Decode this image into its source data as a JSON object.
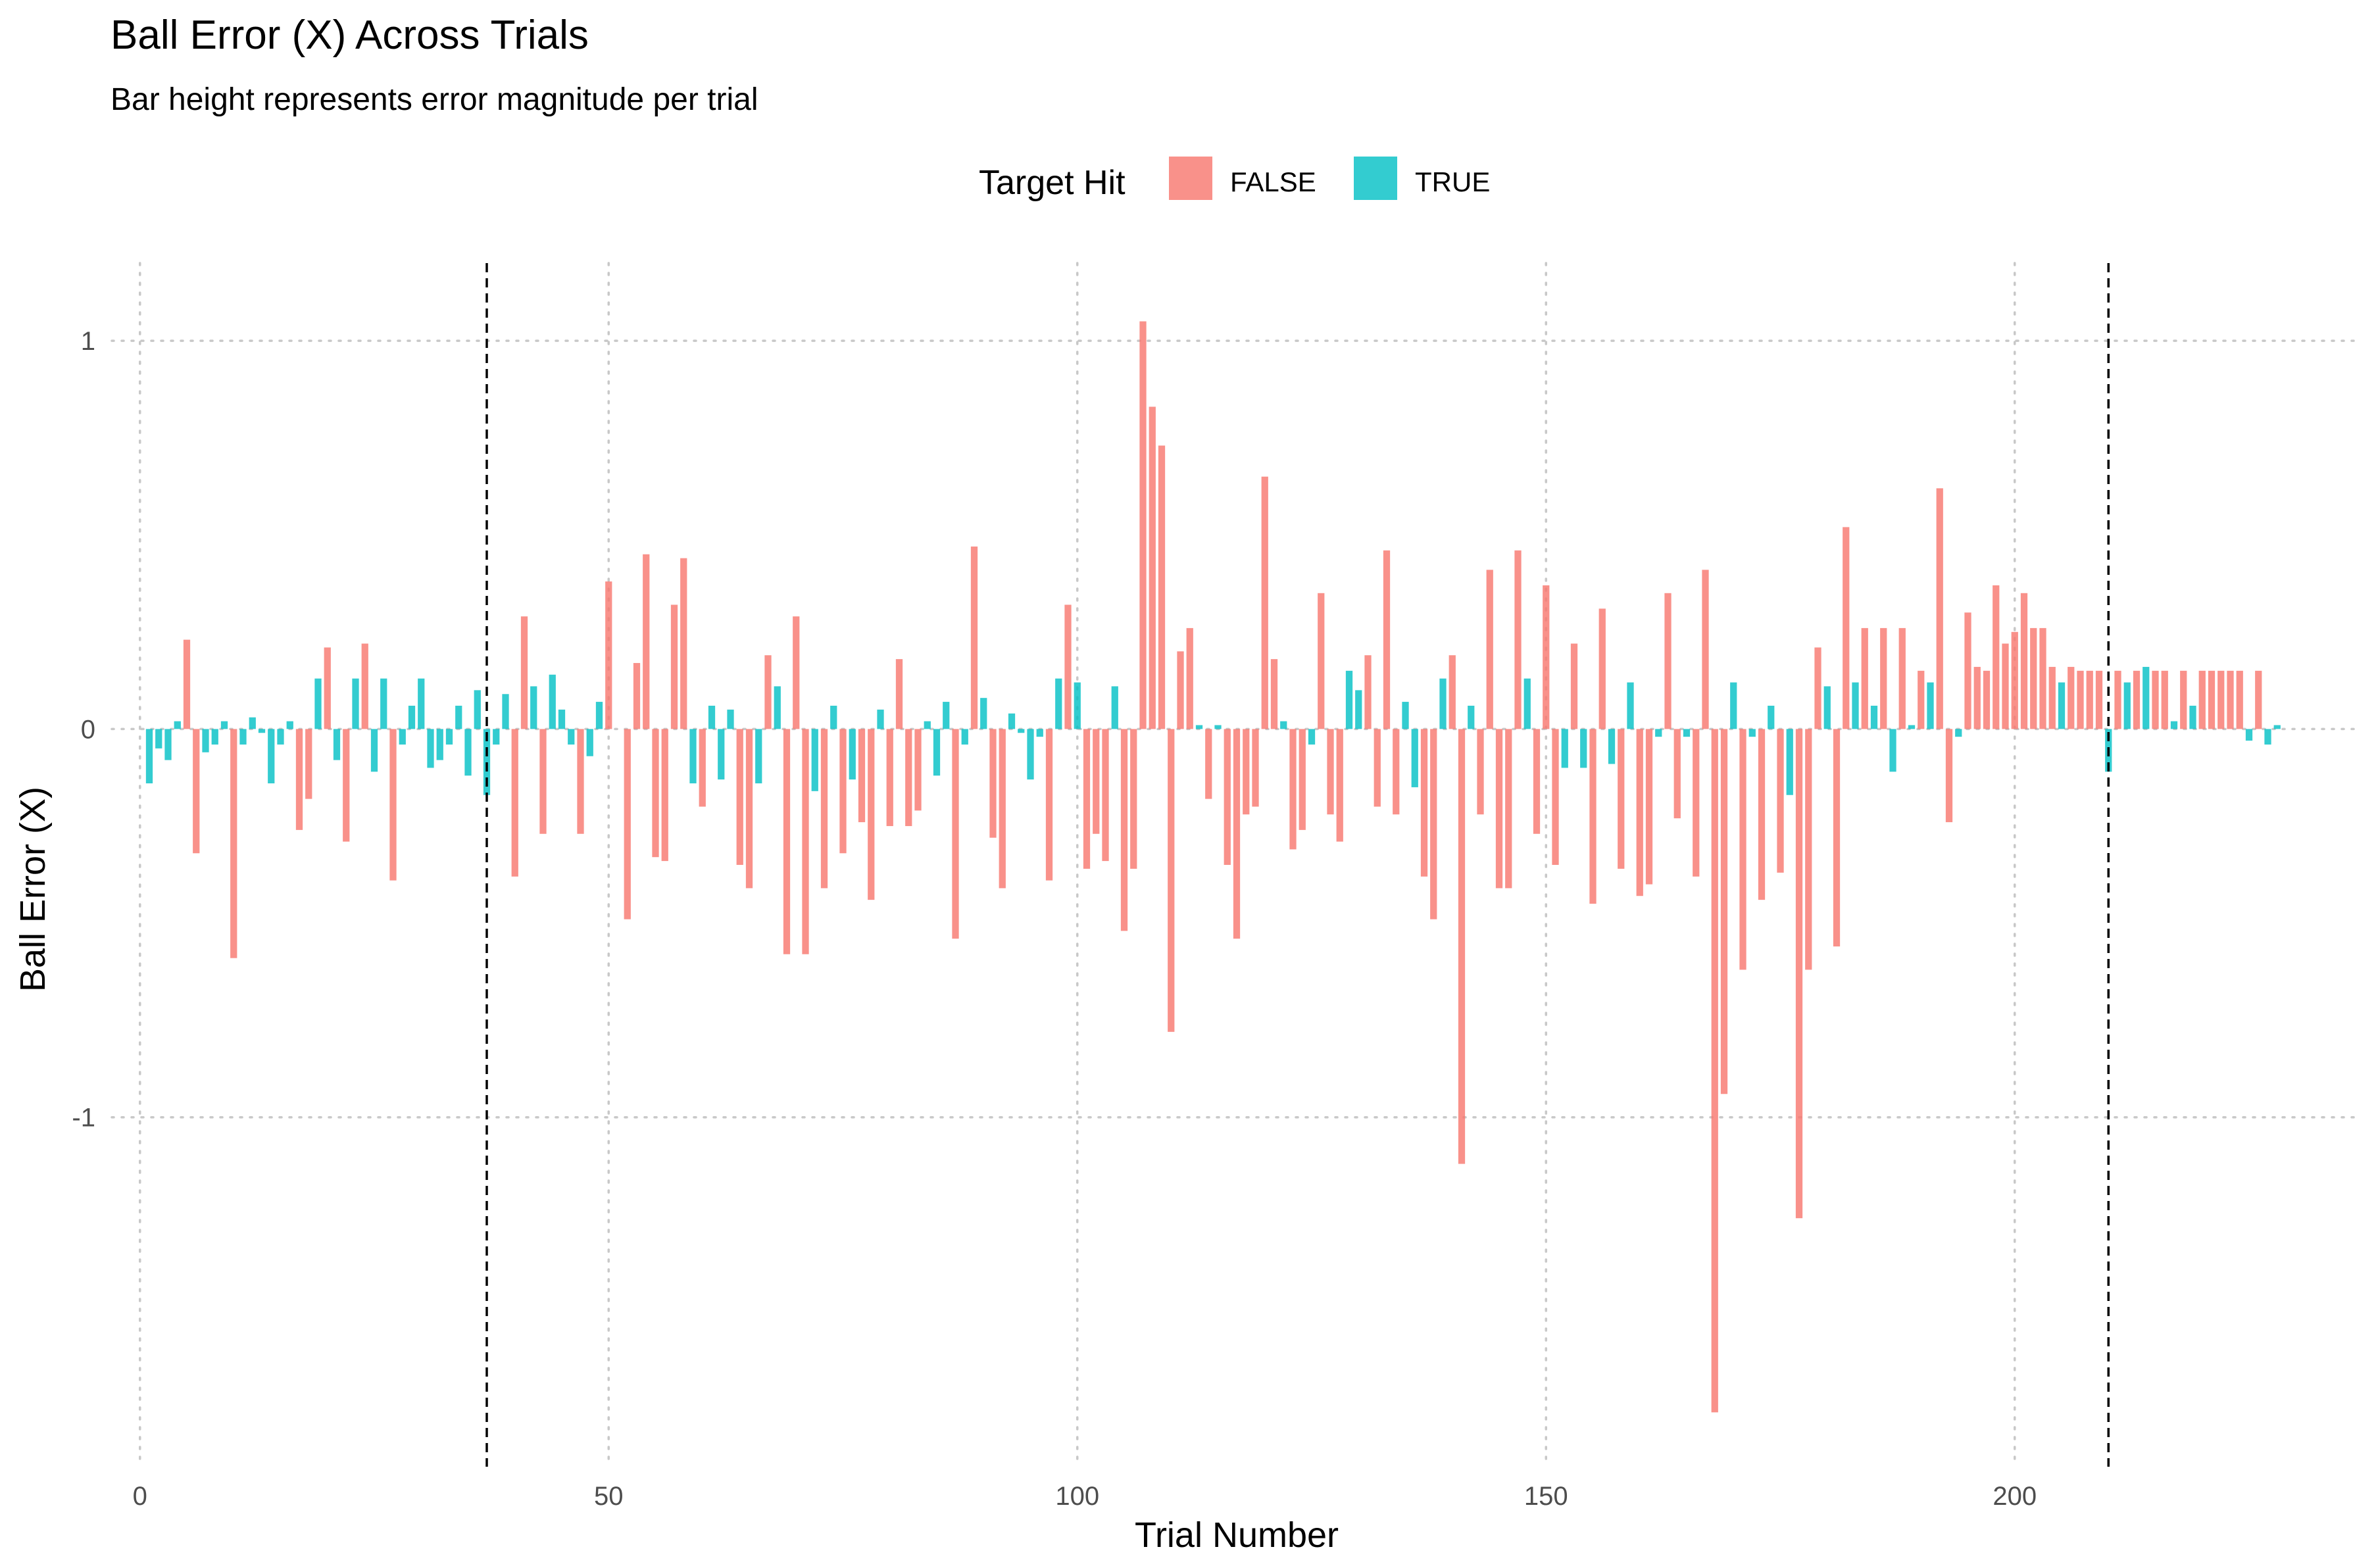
{
  "chart_data": {
    "type": "bar",
    "title": "Ball Error (X) Across Trials",
    "subtitle": "Bar height represents error magnitude per trial",
    "xlabel": "Trial Number",
    "ylabel": "Ball Error (X)",
    "xlim": [
      -3,
      237
    ],
    "ylim": [
      -1.9,
      1.2
    ],
    "x_ticks": [
      0,
      50,
      100,
      150,
      200
    ],
    "y_ticks": [
      -1,
      0,
      1
    ],
    "x_tick_labels": [
      "0",
      "50",
      "100",
      "150",
      "200"
    ],
    "y_tick_labels": [
      "-1",
      "0",
      "1"
    ],
    "grid": "dotted, major x and y",
    "legend": {
      "title": "Target Hit",
      "placement": "top-center",
      "entries": [
        {
          "label": "FALSE",
          "color": "#F8766D"
        },
        {
          "label": "TRUE",
          "color": "#00BFC4"
        }
      ]
    },
    "reference_lines_x": [
      37,
      210
    ],
    "series": [
      {
        "name": "FALSE",
        "color": "#F8766D",
        "x": [
          5,
          6,
          10,
          17,
          18,
          20,
          22,
          24,
          27,
          40,
          41,
          43,
          47,
          50,
          52,
          53,
          54,
          55,
          56,
          57,
          58,
          60,
          64,
          65,
          67,
          69,
          70,
          71,
          73,
          75,
          77,
          78,
          80,
          81,
          82,
          83,
          87,
          89,
          91,
          92,
          97,
          99,
          101,
          102,
          103,
          105,
          106,
          107,
          108,
          109,
          110,
          111,
          112,
          114,
          116,
          117,
          118,
          119,
          120,
          121,
          123,
          124,
          126,
          127,
          128,
          131,
          132,
          133,
          134,
          137,
          138,
          140,
          141,
          143,
          144,
          145,
          146,
          147,
          149,
          150,
          151,
          153,
          155,
          156,
          158,
          160,
          161,
          163,
          164,
          166,
          167,
          168,
          169,
          171,
          173,
          175,
          177,
          178,
          179,
          181,
          182,
          184,
          186,
          188,
          190,
          192,
          193,
          195,
          196,
          197,
          198,
          199,
          200,
          201,
          202,
          203,
          204,
          206,
          207,
          208,
          209,
          211,
          213,
          215,
          216,
          218,
          220,
          221,
          222,
          223,
          224,
          226
        ],
        "values": [
          0.23,
          -0.32,
          -0.59,
          -0.26,
          -0.18,
          0.21,
          -0.29,
          0.22,
          -0.39,
          -0.38,
          0.29,
          -0.27,
          -0.27,
          0.38,
          -0.49,
          0.17,
          0.45,
          -0.33,
          -0.34,
          0.32,
          0.44,
          -0.2,
          -0.35,
          -0.41,
          0.19,
          -0.58,
          0.29,
          -0.58,
          -0.41,
          -0.32,
          -0.24,
          -0.44,
          -0.25,
          0.18,
          -0.25,
          -0.21,
          -0.54,
          0.47,
          -0.28,
          -0.41,
          -0.39,
          0.32,
          -0.36,
          -0.27,
          -0.34,
          -0.52,
          -0.36,
          1.05,
          0.83,
          0.73,
          -0.78,
          0.2,
          0.26,
          -0.18,
          -0.35,
          -0.54,
          -0.22,
          -0.2,
          0.65,
          0.18,
          -0.31,
          -0.26,
          0.35,
          -0.22,
          -0.29,
          0.19,
          -0.2,
          0.46,
          -0.22,
          -0.38,
          -0.49,
          0.19,
          -1.12,
          -0.22,
          0.41,
          -0.41,
          -0.41,
          0.46,
          -0.27,
          0.37,
          -0.35,
          0.22,
          -0.45,
          0.31,
          -0.36,
          -0.43,
          -0.4,
          0.35,
          -0.23,
          -0.38,
          0.41,
          -1.76,
          -0.94,
          -0.62,
          -0.44,
          -0.37,
          -1.26,
          -0.62,
          0.21,
          -0.56,
          0.52,
          0.26,
          0.26,
          0.26,
          0.15,
          0.62,
          -0.24,
          0.3,
          0.16,
          0.15,
          0.37,
          0.22,
          0.25,
          0.35,
          0.26,
          0.26,
          0.16,
          0.16,
          0.15,
          0.15,
          0.15,
          0.15,
          0.15,
          0.15,
          0.15,
          0.15,
          0.15,
          0.15,
          0.15,
          0.15,
          0.15,
          0.15
        ]
      },
      {
        "name": "TRUE",
        "color": "#00BFC4",
        "x": [
          1,
          2,
          3,
          4,
          7,
          8,
          9,
          11,
          12,
          13,
          14,
          15,
          16,
          19,
          21,
          23,
          25,
          26,
          28,
          29,
          30,
          31,
          32,
          33,
          34,
          35,
          36,
          37,
          38,
          39,
          42,
          44,
          45,
          46,
          48,
          49,
          59,
          61,
          62,
          63,
          66,
          68,
          72,
          74,
          76,
          79,
          84,
          85,
          86,
          88,
          90,
          93,
          94,
          95,
          96,
          98,
          100,
          104,
          113,
          115,
          122,
          125,
          129,
          130,
          135,
          136,
          139,
          142,
          148,
          152,
          154,
          157,
          159,
          162,
          165,
          170,
          172,
          174,
          176,
          180,
          183,
          185,
          187,
          189,
          191,
          194,
          205,
          210,
          212,
          214,
          217,
          219,
          225,
          227,
          228
        ],
        "values": [
          -0.14,
          -0.05,
          -0.08,
          0.02,
          -0.06,
          -0.04,
          0.02,
          -0.04,
          0.03,
          -0.01,
          -0.14,
          -0.04,
          0.02,
          0.13,
          -0.08,
          0.13,
          -0.11,
          0.13,
          -0.04,
          0.06,
          0.13,
          -0.1,
          -0.08,
          -0.04,
          0.06,
          -0.12,
          0.1,
          -0.17,
          -0.04,
          0.09,
          0.11,
          0.14,
          0.05,
          -0.04,
          -0.07,
          0.07,
          -0.14,
          0.06,
          -0.13,
          0.05,
          -0.14,
          0.11,
          -0.16,
          0.06,
          -0.13,
          0.05,
          0.02,
          -0.12,
          0.07,
          -0.04,
          0.08,
          0.04,
          -0.01,
          -0.13,
          -0.02,
          0.13,
          0.12,
          0.11,
          0.01,
          0.01,
          0.02,
          -0.04,
          0.15,
          0.1,
          0.07,
          -0.15,
          0.13,
          0.06,
          0.13,
          -0.1,
          -0.1,
          -0.09,
          0.12,
          -0.02,
          -0.02,
          0.12,
          -0.02,
          0.06,
          -0.17,
          0.11,
          0.12,
          0.06,
          -0.11,
          0.01,
          0.12,
          -0.02,
          0.12,
          -0.11,
          0.12,
          0.16,
          0.02,
          0.06,
          -0.03,
          -0.04,
          0.01
        ]
      }
    ]
  }
}
